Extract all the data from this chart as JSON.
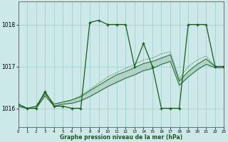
{
  "title": "Graphe pression niveau de la mer (hPa)",
  "bg_color": "#cce8e8",
  "line_color": "#1a5c1a",
  "grid_color": "#99cccc",
  "xlim": [
    0,
    23
  ],
  "ylim": [
    1015.55,
    1018.55
  ],
  "yticks": [
    1016,
    1017,
    1018
  ],
  "xticks": [
    0,
    1,
    2,
    3,
    4,
    5,
    6,
    7,
    8,
    9,
    10,
    11,
    12,
    13,
    14,
    15,
    16,
    17,
    18,
    19,
    20,
    21,
    22,
    23
  ],
  "hours": [
    0,
    1,
    2,
    3,
    4,
    5,
    6,
    7,
    8,
    9,
    10,
    11,
    12,
    13,
    14,
    15,
    16,
    17,
    18,
    19,
    20,
    21,
    22,
    23
  ],
  "pressure_main": [
    1016.1,
    1016.0,
    1016.0,
    1016.4,
    1016.05,
    1016.05,
    1016.0,
    1016.0,
    1018.05,
    1018.1,
    1018.0,
    1018.0,
    1018.0,
    1017.0,
    1017.55,
    1017.0,
    1016.0,
    1016.0,
    1016.0,
    1018.0,
    1018.0,
    1018.0,
    1017.0,
    1017.0
  ],
  "pressure_dotted": [
    1016.1,
    1016.0,
    1016.05,
    1016.4,
    1016.1,
    1016.15,
    1016.2,
    1016.3,
    1016.45,
    1016.6,
    1016.75,
    1016.85,
    1016.95,
    1017.05,
    1017.15,
    1017.2,
    1017.3,
    1017.35,
    1016.7,
    1017.0,
    1017.15,
    1017.25,
    1017.0,
    1017.0
  ],
  "pressure_band_hi": [
    1016.05,
    1016.0,
    1016.05,
    1016.35,
    1016.1,
    1016.15,
    1016.2,
    1016.28,
    1016.42,
    1016.55,
    1016.68,
    1016.8,
    1016.88,
    1016.97,
    1017.07,
    1017.12,
    1017.2,
    1017.28,
    1016.65,
    1016.88,
    1017.05,
    1017.18,
    1017.0,
    1017.0
  ],
  "pressure_band_lo": [
    1016.05,
    1016.0,
    1016.0,
    1016.3,
    1016.05,
    1016.1,
    1016.12,
    1016.18,
    1016.28,
    1016.4,
    1016.52,
    1016.62,
    1016.72,
    1016.8,
    1016.9,
    1016.95,
    1017.05,
    1017.12,
    1016.55,
    1016.75,
    1016.92,
    1017.05,
    1016.97,
    1016.97
  ]
}
